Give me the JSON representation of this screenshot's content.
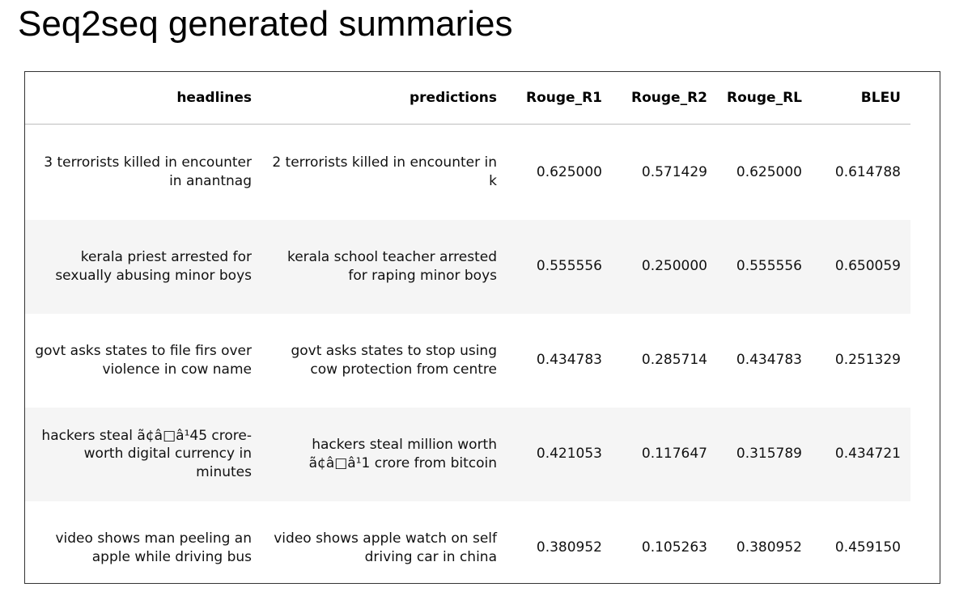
{
  "title": "Seq2seq generated summaries",
  "table": {
    "columns": [
      "headlines",
      "predictions",
      "Rouge_R1",
      "Rouge_R2",
      "Rouge_RL",
      "BLEU"
    ],
    "rows": [
      [
        "3 terrorists killed in encounter in anantnag",
        "2 terrorists killed in encounter in k",
        "0.625000",
        "0.571429",
        "0.625000",
        "0.614788"
      ],
      [
        "kerala priest arrested for sexually abusing minor boys",
        "kerala school teacher arrested for raping minor boys",
        "0.555556",
        "0.250000",
        "0.555556",
        "0.650059"
      ],
      [
        "govt asks states to file firs over violence in cow name",
        "govt asks states to stop using cow protection from centre",
        "0.434783",
        "0.285714",
        "0.434783",
        "0.251329"
      ],
      [
        "hackers steal ã¢â□â¹45 crore-worth digital currency in minutes",
        "hackers steal million worth ã¢â□â¹1 crore from bitcoin",
        "0.421053",
        "0.117647",
        "0.315789",
        "0.434721"
      ],
      [
        "video shows man peeling an apple while driving bus",
        "video shows apple watch on self driving car in china",
        "0.380952",
        "0.105263",
        "0.380952",
        "0.459150"
      ]
    ]
  }
}
